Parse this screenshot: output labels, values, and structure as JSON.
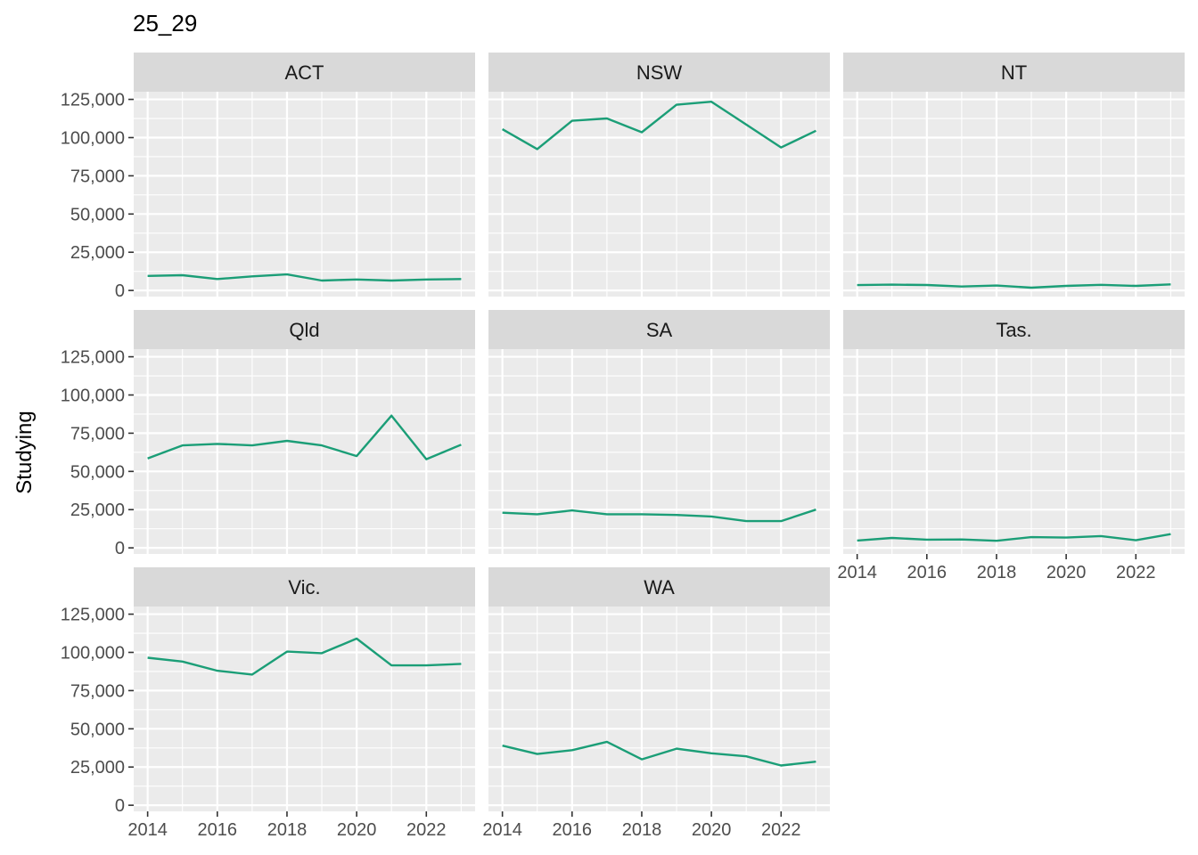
{
  "chart_data": {
    "type": "line",
    "title": "25_29",
    "ylabel": "Studying",
    "xlabel": "",
    "line_color": "#1B9E77",
    "x": [
      2014,
      2015,
      2016,
      2017,
      2018,
      2019,
      2020,
      2021,
      2022,
      2023
    ],
    "xlim": [
      2013.6,
      2023.4
    ],
    "ylim": [
      -4000,
      130000
    ],
    "x_breaks": [
      2014,
      2016,
      2018,
      2020,
      2022
    ],
    "x_tick_labels": [
      "2014",
      "2016",
      "2018",
      "2020",
      "2022"
    ],
    "y_breaks": [
      0,
      25000,
      50000,
      75000,
      100000,
      125000
    ],
    "y_tick_labels": [
      "0",
      "25,000",
      "50,000",
      "75,000",
      "100,000",
      "125,000"
    ],
    "grid": true,
    "facets": [
      {
        "label": "ACT",
        "values": [
          9500,
          10000,
          7500,
          9200,
          10500,
          6500,
          7200,
          6500,
          7200,
          7500
        ]
      },
      {
        "label": "NSW",
        "values": [
          105500,
          92500,
          111000,
          112500,
          103500,
          121500,
          123500,
          108500,
          93500,
          104500
        ]
      },
      {
        "label": "NT",
        "values": [
          3500,
          3800,
          3600,
          2600,
          3200,
          1800,
          3000,
          3700,
          3000,
          4000
        ]
      },
      {
        "label": "Qld",
        "values": [
          58500,
          67000,
          68000,
          67000,
          70000,
          67000,
          60000,
          86500,
          58000,
          67500
        ]
      },
      {
        "label": "SA",
        "values": [
          23000,
          22000,
          24500,
          22000,
          22000,
          21500,
          20500,
          17500,
          17500,
          25000
        ]
      },
      {
        "label": "Tas.",
        "values": [
          4800,
          6500,
          5400,
          5500,
          4600,
          7000,
          6700,
          7700,
          5000,
          9000
        ]
      },
      {
        "label": "Vic.",
        "values": [
          96500,
          94000,
          88000,
          85500,
          100500,
          99500,
          109000,
          91500,
          91500,
          92500
        ]
      },
      {
        "label": "WA",
        "values": [
          39000,
          33500,
          36000,
          41500,
          30000,
          37000,
          34000,
          32000,
          26000,
          28500
        ]
      }
    ]
  }
}
